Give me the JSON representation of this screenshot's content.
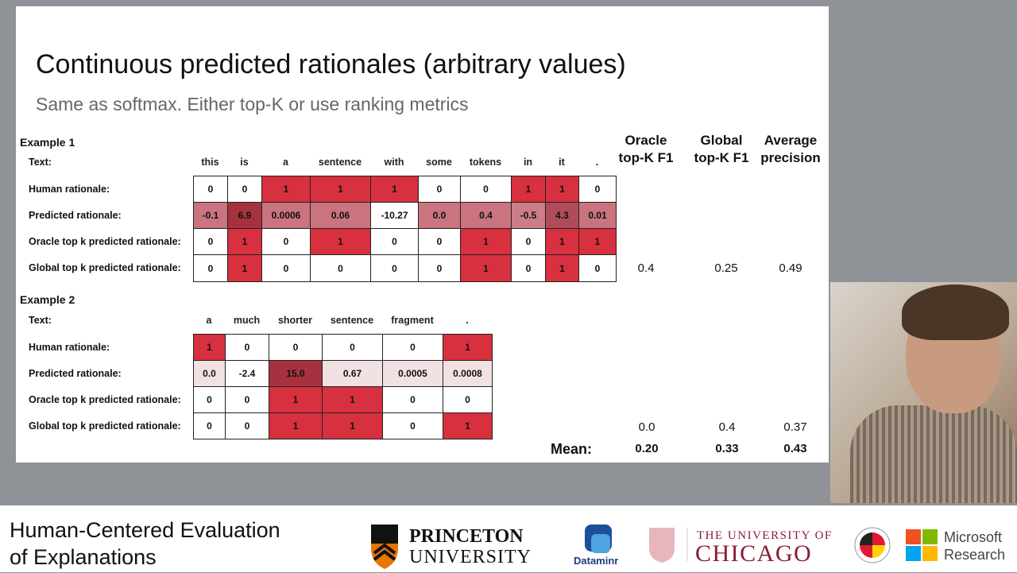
{
  "slide": {
    "title": "Continuous predicted rationales (arbitrary values)",
    "subtitle": "Same as softmax. Either top-K or use ranking metrics"
  },
  "colors": {
    "red": "#d7303f",
    "white": "#ffffff"
  },
  "row_labels": {
    "text": "Text:",
    "human": "Human rationale:",
    "predicted": "Predicted rationale:",
    "oracle": "Oracle top k predicted rationale:",
    "global": "Global top k predicted rationale:"
  },
  "metrics_headers": [
    {
      "line1": "Oracle",
      "line2": "top-K F1"
    },
    {
      "line1": "Global",
      "line2": "top-K F1"
    },
    {
      "line1": "Average",
      "line2": "precision"
    }
  ],
  "examples": [
    {
      "label": "Example 1",
      "tokens": [
        "this",
        "is",
        "a",
        "sentence",
        "with",
        "some",
        "tokens",
        "in",
        "it",
        "."
      ],
      "human": [
        "0",
        "0",
        "1",
        "1",
        "1",
        "0",
        "0",
        "1",
        "1",
        "0"
      ],
      "predicted": [
        "-0.1",
        "6.9",
        "0.0006",
        "0.06",
        "-10.27",
        "0.0",
        "0.4",
        "-0.5",
        "4.3",
        "0.01"
      ],
      "predicted_colors": [
        "#c9747f",
        "#a6323f",
        "#c9747f",
        "#c9747f",
        "#ffffff",
        "#c9747f",
        "#c9747f",
        "#cc7d87",
        "#b04c59",
        "#c9747f"
      ],
      "oracle": [
        "0",
        "1",
        "0",
        "1",
        "0",
        "0",
        "1",
        "0",
        "1",
        "1"
      ],
      "global": [
        "0",
        "1",
        "0",
        "0",
        "0",
        "0",
        "1",
        "0",
        "1",
        "0"
      ],
      "metrics": [
        "0.4",
        "0.25",
        "0.49"
      ]
    },
    {
      "label": "Example 2",
      "tokens": [
        "a",
        "much",
        "shorter",
        "sentence",
        "fragment",
        "."
      ],
      "human": [
        "1",
        "0",
        "0",
        "0",
        "0",
        "1"
      ],
      "predicted": [
        "0.0",
        "-2.4",
        "15.0",
        "0.67",
        "0.0005",
        "0.0008"
      ],
      "predicted_colors": [
        "#f2e1e2",
        "#ffffff",
        "#a6323f",
        "#f2e1e2",
        "#f2e1e2",
        "#f2e1e2"
      ],
      "oracle": [
        "0",
        "0",
        "1",
        "1",
        "0",
        "0"
      ],
      "global": [
        "0",
        "0",
        "1",
        "1",
        "0",
        "1"
      ],
      "metrics": [
        "0.0",
        "0.4",
        "0.37"
      ]
    }
  ],
  "mean": {
    "label": "Mean:",
    "values": [
      "0.20",
      "0.33",
      "0.43"
    ]
  },
  "footer": {
    "title_line1": "Human-Centered Evaluation",
    "title_line2": "of Explanations",
    "logos": {
      "princeton": "PRINCETON UNIVERSITY",
      "dataminr": "Dataminr",
      "chicago_small": "THE UNIVERSITY OF",
      "chicago_big": "CHICAGO",
      "maryland": "University of Maryland",
      "microsoft": "Microsoft Research"
    }
  }
}
